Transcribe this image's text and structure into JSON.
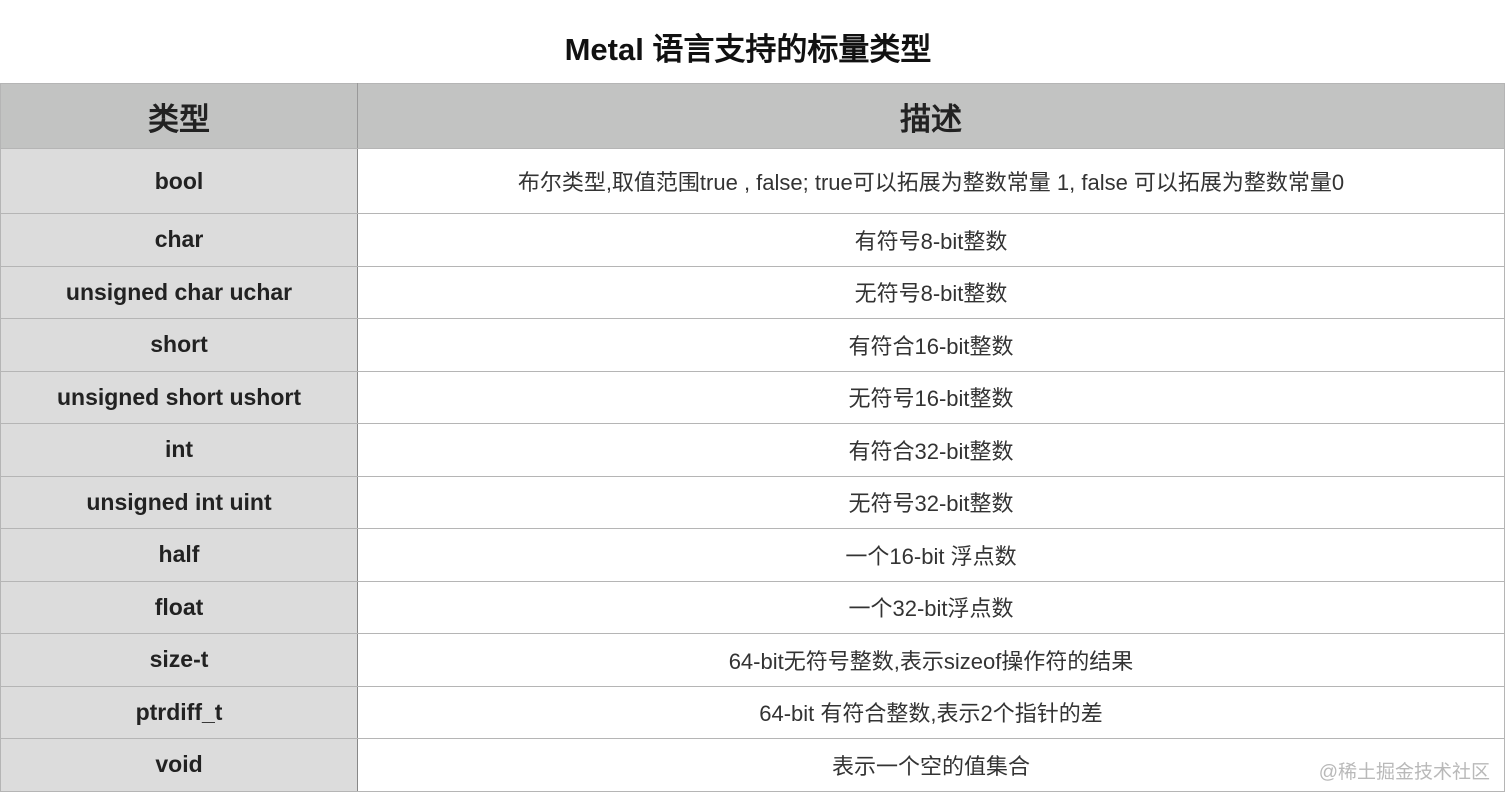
{
  "title": "Metal 语言支持的标量类型",
  "table": {
    "headers": [
      "类型",
      "描述"
    ],
    "rows": [
      {
        "type": "bool",
        "desc": "布尔类型,取值范围true , false; true可以拓展为整数常量 1, false 可以拓展为整数常量0"
      },
      {
        "type": "char",
        "desc": "有符号8-bit整数"
      },
      {
        "type": "unsigned char uchar",
        "desc": "无符号8-bit整数"
      },
      {
        "type": "short",
        "desc": "有符合16-bit整数"
      },
      {
        "type": "unsigned short ushort",
        "desc": "无符号16-bit整数"
      },
      {
        "type": "int",
        "desc": "有符合32-bit整数"
      },
      {
        "type": "unsigned int uint",
        "desc": "无符号32-bit整数"
      },
      {
        "type": "half",
        "desc": "一个16-bit 浮点数"
      },
      {
        "type": "float",
        "desc": "一个32-bit浮点数"
      },
      {
        "type": "size-t",
        "desc": "64-bit无符号整数,表示sizeof操作符的结果"
      },
      {
        "type": "ptrdiff_t",
        "desc": "64-bit 有符合整数,表示2个指针的差"
      },
      {
        "type": "void",
        "desc": "表示一个空的值集合"
      }
    ]
  },
  "watermark": "@稀土掘金技术社区",
  "colors": {
    "header_bg": "#c2c3c2",
    "type_col_bg": "#dcdcdc",
    "border": "#b5b5b5"
  }
}
